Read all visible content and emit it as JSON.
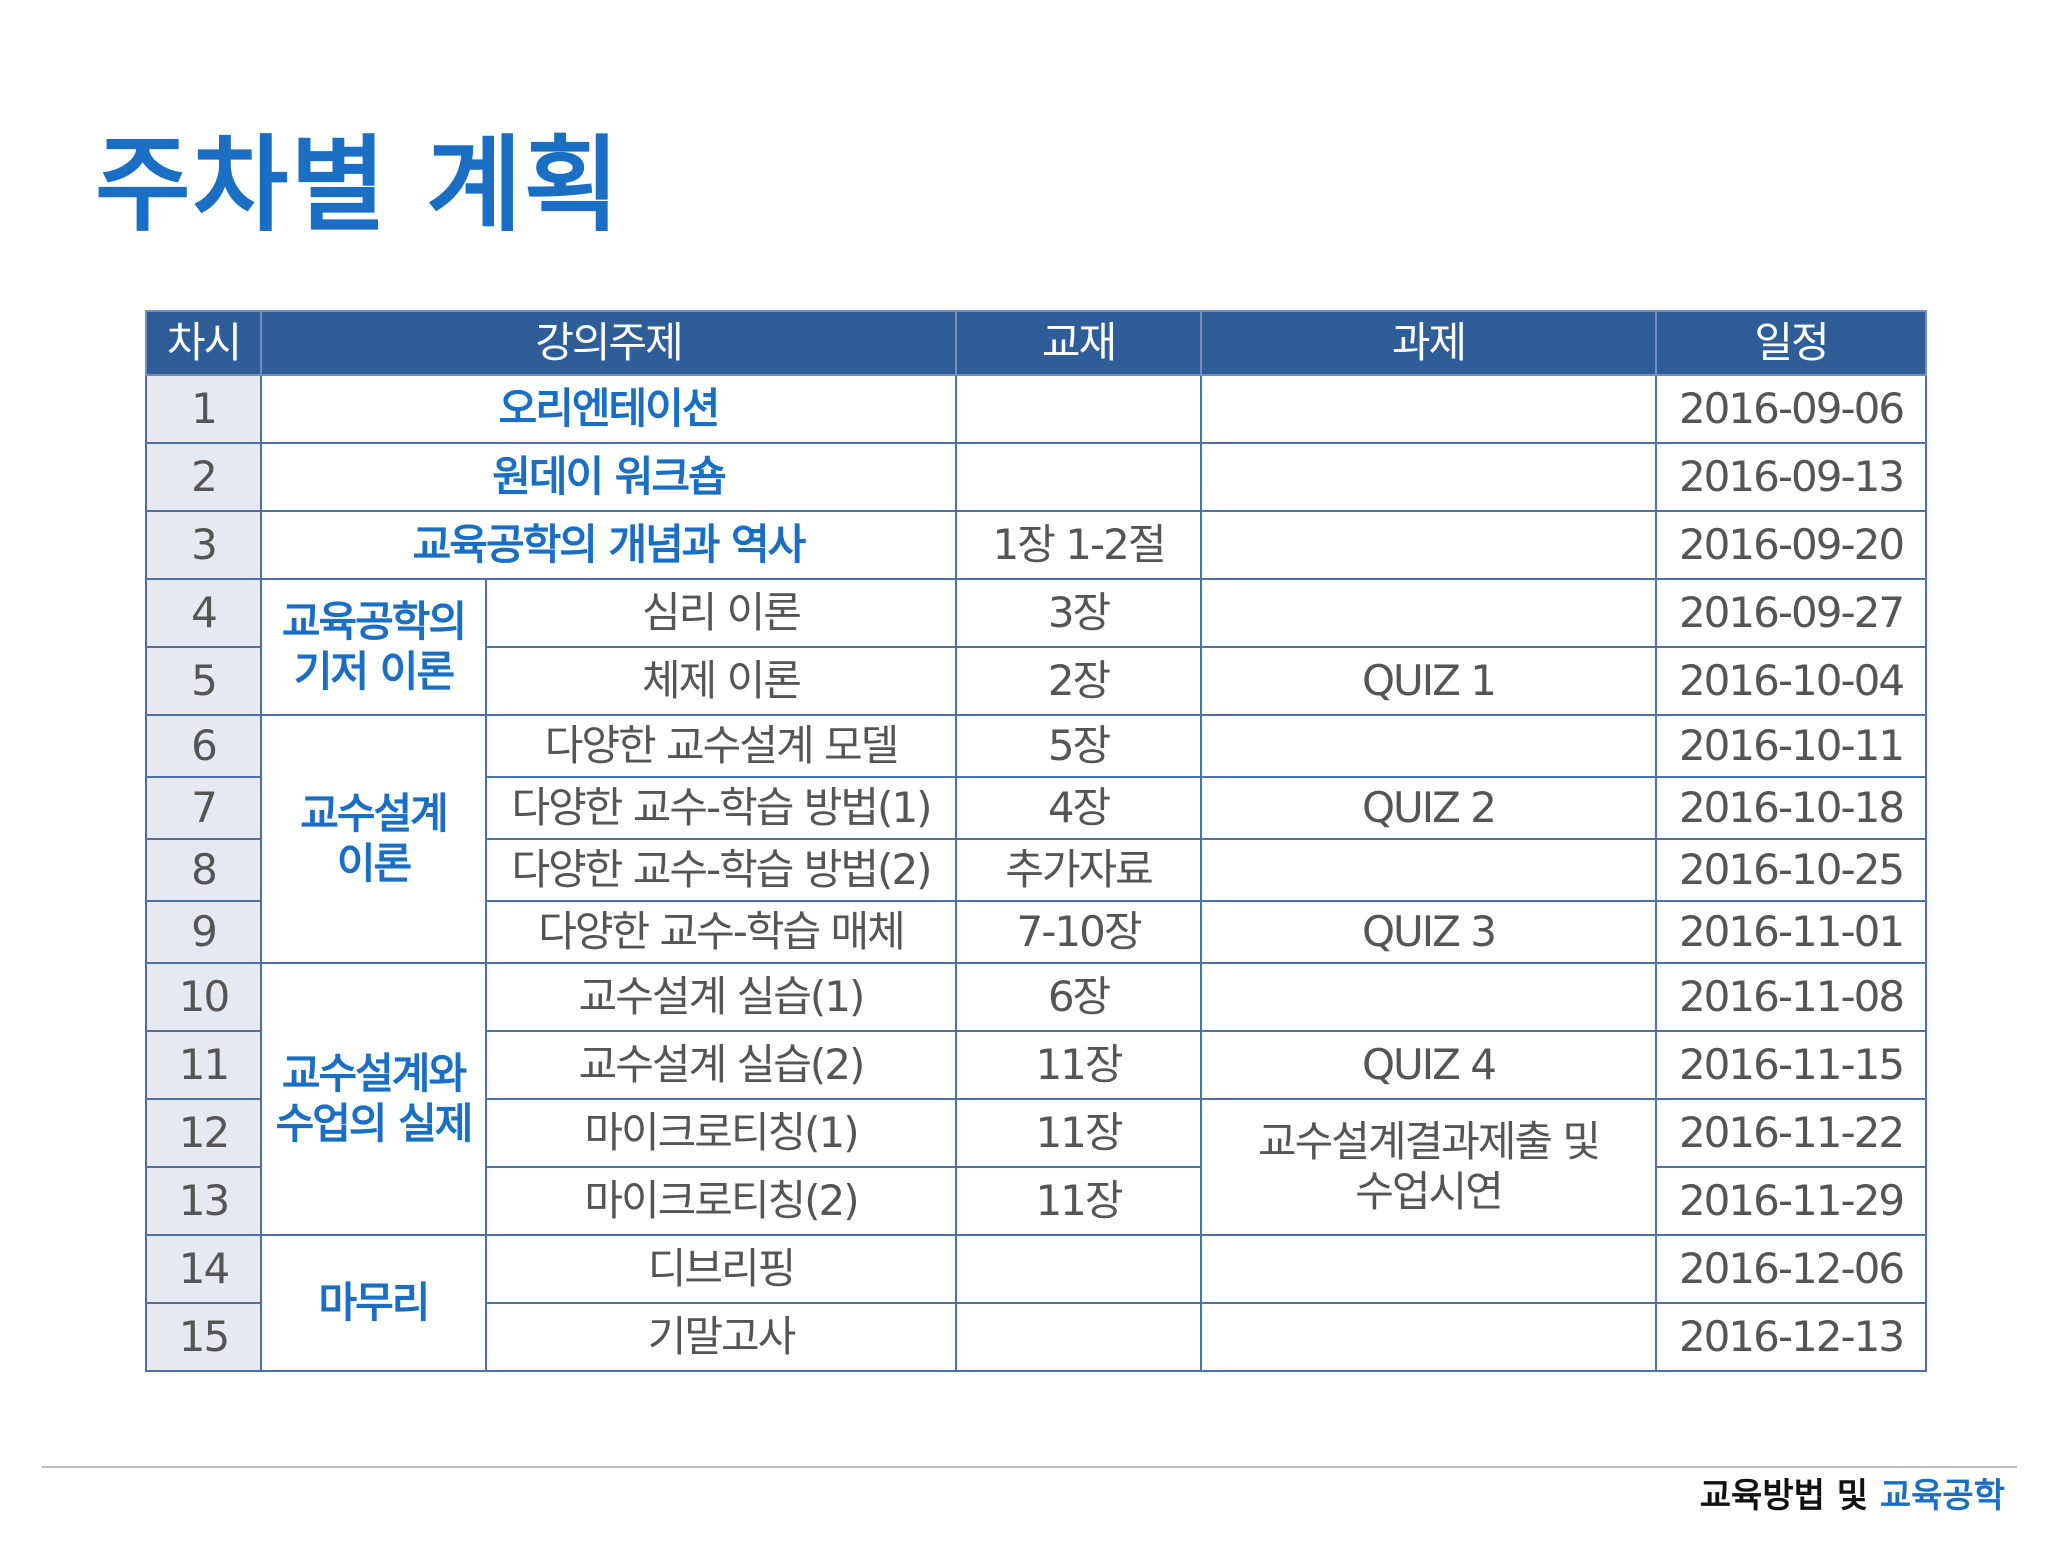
{
  "header": {
    "title": "주차별 계획"
  },
  "table": {
    "columns": [
      "차시",
      "강의주제",
      "교재",
      "과제",
      "일정"
    ],
    "rows": [
      {
        "no": "1",
        "topic": "오리엔테이션",
        "date": "2016-09-06"
      },
      {
        "no": "2",
        "topic": "원데이 워크숍",
        "date": "2016-09-13"
      },
      {
        "no": "3",
        "topic": "교육공학의 개념과 역사",
        "textbook": "1장 1-2절",
        "date": "2016-09-20"
      },
      {
        "no": "4",
        "group": "교육공학의\n기저 이론",
        "topic": "심리 이론",
        "textbook": "3장",
        "date": "2016-09-27"
      },
      {
        "no": "5",
        "topic": "체제 이론",
        "textbook": "2장",
        "assignment": "QUIZ 1",
        "date": "2016-10-04"
      },
      {
        "no": "6",
        "group": "교수설계\n이론",
        "topic": "다양한 교수설계 모델",
        "textbook": "5장",
        "date": "2016-10-11"
      },
      {
        "no": "7",
        "topic": "다양한 교수-학습 방법(1)",
        "textbook": "4장",
        "assignment": "QUIZ 2",
        "date": "2016-10-18"
      },
      {
        "no": "8",
        "topic": "다양한 교수-학습 방법(2)",
        "textbook": "추가자료",
        "date": "2016-10-25"
      },
      {
        "no": "9",
        "topic": "다양한 교수-학습 매체",
        "textbook": "7-10장",
        "assignment": "QUIZ 3",
        "date": "2016-11-01"
      },
      {
        "no": "10",
        "group": "교수설계와\n수업의 실제",
        "topic": "교수설계 실습(1)",
        "textbook": "6장",
        "date": "2016-11-08"
      },
      {
        "no": "11",
        "topic": "교수설계 실습(2)",
        "textbook": "11장",
        "assignment": "QUIZ 4",
        "date": "2016-11-15"
      },
      {
        "no": "12",
        "topic": "마이크로티칭(1)",
        "textbook": "11장",
        "assignment": "교수설계결과제출 및\n수업시연",
        "date": "2016-11-22"
      },
      {
        "no": "13",
        "topic": "마이크로티칭(2)",
        "textbook": "11장",
        "date": "2016-11-29"
      },
      {
        "no": "14",
        "group": "마무리",
        "topic": "디브리핑",
        "date": "2016-12-06"
      },
      {
        "no": "15",
        "topic": "기말고사",
        "date": "2016-12-13"
      }
    ]
  },
  "footer": {
    "text": "교육방법 및",
    "highlight": "교육공학"
  }
}
